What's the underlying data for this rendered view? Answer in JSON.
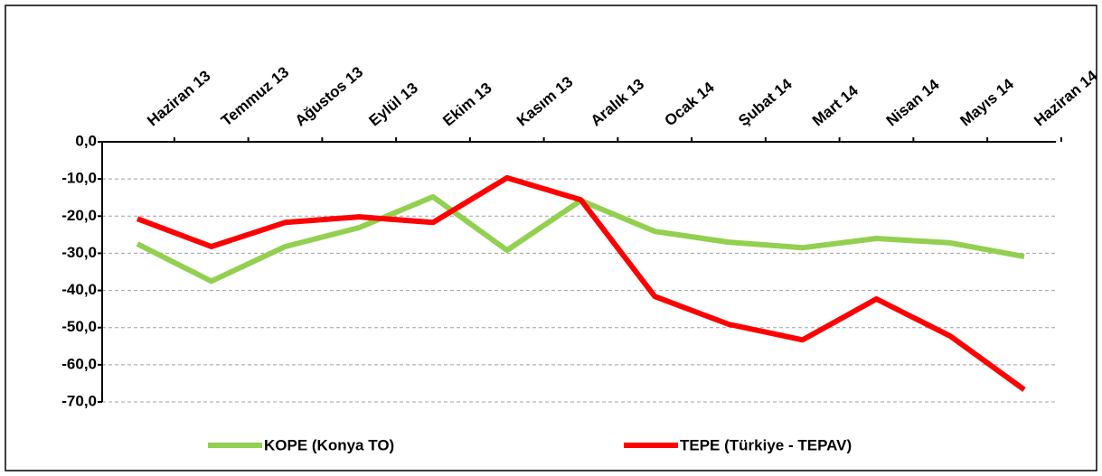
{
  "chart_data": {
    "type": "line",
    "categories": [
      "Haziran 13",
      "Temmuz 13",
      "Ağustos 13",
      "Eylül 13",
      "Ekim 13",
      "Kasım 13",
      "Aralık 13",
      "Ocak 14",
      "Şubat 14",
      "Mart 14",
      "Nisan 14",
      "Mayıs 14",
      "Haziran 14"
    ],
    "series": [
      {
        "name": "KOPE (Konya TO)",
        "color": "#92d050",
        "values": [
          -27.5,
          -37.5,
          -28.2,
          -23.1,
          -14.8,
          -29.2,
          -15.8,
          -24.1,
          -27.0,
          -28.5,
          -26.0,
          -27.2,
          -30.9
        ]
      },
      {
        "name": "TEPE (Türkiye - TEPAV)",
        "color": "#ff0000",
        "values": [
          -20.7,
          -28.2,
          -21.7,
          -20.2,
          -21.7,
          -9.7,
          -15.6,
          -41.6,
          -49.1,
          -53.3,
          -42.3,
          -52.3,
          -66.7
        ]
      }
    ],
    "ylim": [
      -70,
      0
    ],
    "yticks": [
      {
        "value": 0,
        "label": "0,0"
      },
      {
        "value": -10,
        "label": "-10,0"
      },
      {
        "value": -20,
        "label": "-20,0"
      },
      {
        "value": -30,
        "label": "-30,0"
      },
      {
        "value": -40,
        "label": "-40,0"
      },
      {
        "value": -50,
        "label": "-50,0"
      },
      {
        "value": -60,
        "label": "-60,0"
      },
      {
        "value": -70,
        "label": "-70,0"
      }
    ],
    "grid": true,
    "legend": "bottom"
  }
}
